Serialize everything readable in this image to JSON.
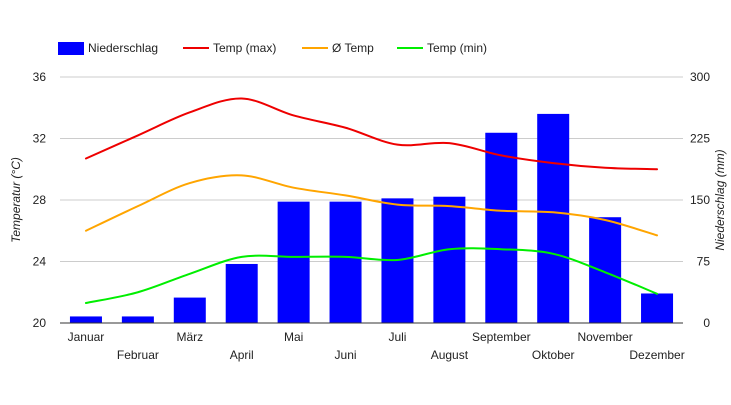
{
  "chart_data": {
    "type": "bar",
    "title": "",
    "categories": [
      "Januar",
      "Februar",
      "März",
      "April",
      "Mai",
      "Juni",
      "Juli",
      "August",
      "September",
      "Oktober",
      "November",
      "Dezember"
    ],
    "ylabel_left": "Temperatur (°C)",
    "ylabel_right": "Niederschlag (mm)",
    "xlabel": "",
    "ylim_left": [
      20,
      36
    ],
    "ylim_right": [
      0,
      300
    ],
    "yticks_left": [
      20,
      24,
      28,
      32,
      36
    ],
    "yticks_right": [
      0,
      75,
      150,
      225,
      300
    ],
    "grid": true,
    "legend_position": "top-left",
    "series": [
      {
        "name": "Niederschlag",
        "type": "bar",
        "axis": "right",
        "color": "#0000ff",
        "values": [
          8,
          8,
          31,
          72,
          148,
          148,
          152,
          154,
          232,
          255,
          129,
          36
        ]
      },
      {
        "name": "Temp (max)",
        "type": "line",
        "axis": "left",
        "color": "#ee0000",
        "values": [
          30.7,
          32.2,
          33.7,
          34.6,
          33.5,
          32.7,
          31.6,
          31.7,
          30.9,
          30.4,
          30.1,
          30.0
        ]
      },
      {
        "name": "Ø Temp",
        "type": "line",
        "axis": "left",
        "color": "#ffa500",
        "values": [
          26.0,
          27.6,
          29.1,
          29.6,
          28.8,
          28.3,
          27.7,
          27.6,
          27.3,
          27.2,
          26.7,
          25.7
        ]
      },
      {
        "name": "Temp (min)",
        "type": "line",
        "axis": "left",
        "color": "#00ee00",
        "values": [
          21.3,
          22.0,
          23.2,
          24.3,
          24.3,
          24.3,
          24.1,
          24.8,
          24.8,
          24.5,
          23.3,
          21.9
        ]
      }
    ]
  }
}
